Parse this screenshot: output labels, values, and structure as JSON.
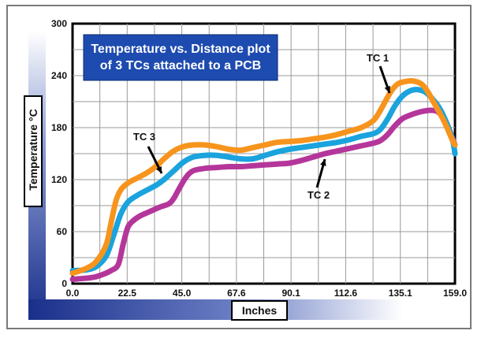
{
  "chart_data": {
    "type": "line",
    "title_lines": [
      "Temperature vs. Distance plot",
      "of 3 TCs attached to a PCB"
    ],
    "xlabel": "Inches",
    "ylabel": "Temperature",
    "ylabel_unit": "°C",
    "xlim": [
      0,
      159
    ],
    "ylim": [
      0,
      300
    ],
    "x_ticks": [
      "0.0",
      "22.5",
      "45.0",
      "67.6",
      "90.1",
      "112.6",
      "135.1",
      "159.0"
    ],
    "y_ticks": [
      "0",
      "60",
      "120",
      "180",
      "240",
      "300"
    ],
    "grid": true,
    "series": [
      {
        "name": "TC 1",
        "color": "#f7941d",
        "x": [
          0,
          6,
          10,
          14,
          16,
          18,
          20,
          23,
          27,
          31,
          35,
          38,
          42,
          46,
          50,
          55,
          60,
          65,
          70,
          75,
          80,
          85,
          90,
          95,
          100,
          105,
          110,
          115,
          120,
          125,
          128,
          132,
          135,
          138,
          141,
          144,
          146,
          148,
          150,
          152,
          154,
          156,
          158,
          159
        ],
        "y": [
          12,
          18,
          26,
          45,
          70,
          95,
          108,
          116,
          122,
          128,
          136,
          144,
          153,
          158,
          160,
          160,
          158,
          155,
          154,
          157,
          160,
          163,
          164,
          165,
          167,
          169,
          172,
          176,
          180,
          188,
          200,
          220,
          230,
          233,
          234,
          232,
          228,
          220,
          210,
          200,
          190,
          178,
          165,
          160
        ]
      },
      {
        "name": "TC 3",
        "color": "#1aa3dd",
        "x": [
          0,
          6,
          10,
          14,
          17,
          20,
          23,
          27,
          31,
          35,
          38,
          42,
          46,
          50,
          55,
          60,
          65,
          70,
          75,
          80,
          85,
          90,
          95,
          100,
          105,
          110,
          115,
          120,
          125,
          128,
          131,
          134,
          137,
          140,
          143,
          146,
          148,
          150,
          152,
          154,
          156,
          158,
          159
        ],
        "y": [
          15,
          16,
          20,
          32,
          55,
          80,
          94,
          102,
          108,
          114,
          120,
          130,
          140,
          146,
          148,
          148,
          146,
          144,
          144,
          148,
          152,
          155,
          157,
          159,
          161,
          163,
          166,
          170,
          173,
          178,
          190,
          205,
          216,
          222,
          224,
          222,
          218,
          212,
          205,
          195,
          182,
          166,
          150
        ]
      },
      {
        "name": "TC 2",
        "color": "#b5369b",
        "x": [
          0,
          8,
          12,
          16,
          19,
          21,
          23,
          25,
          28,
          32,
          36,
          40,
          42,
          44,
          47,
          50,
          55,
          60,
          65,
          70,
          75,
          80,
          85,
          90,
          95,
          100,
          105,
          110,
          115,
          120,
          125,
          128,
          131,
          134,
          137,
          140,
          143,
          146,
          149,
          152,
          155,
          157,
          159
        ],
        "y": [
          5,
          7,
          10,
          15,
          22,
          45,
          65,
          72,
          78,
          83,
          88,
          92,
          98,
          108,
          122,
          130,
          133,
          134,
          135,
          135,
          136,
          137,
          138,
          139,
          142,
          146,
          150,
          153,
          156,
          159,
          162,
          165,
          172,
          182,
          190,
          194,
          197,
          199,
          200,
          198,
          188,
          175,
          160
        ]
      }
    ],
    "annotations": [
      {
        "text": "TC 1",
        "series": "TC 1"
      },
      {
        "text": "TC 2",
        "series": "TC 2"
      },
      {
        "text": "TC 3",
        "series": "TC 3"
      }
    ]
  }
}
